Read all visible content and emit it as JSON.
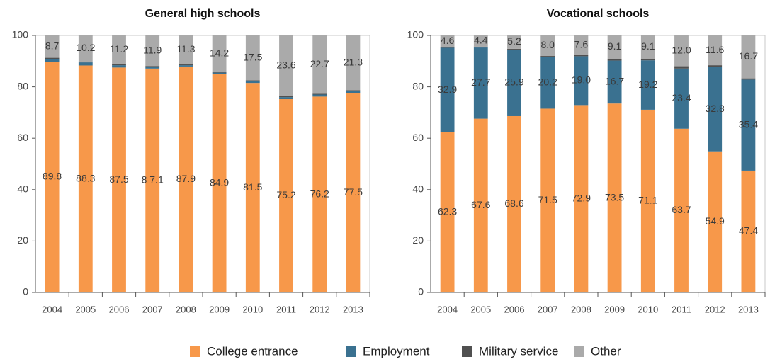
{
  "chart_data": [
    {
      "type": "stacked-bar",
      "title": "General high schools",
      "categories": [
        "2004",
        "2005",
        "2006",
        "2007",
        "2008",
        "2009",
        "2010",
        "2011",
        "2012",
        "2013"
      ],
      "ylim": [
        0,
        100
      ],
      "yticks": [
        0,
        20,
        40,
        60,
        80,
        100
      ],
      "series": [
        {
          "name": "College entrance",
          "color": "#f7984a",
          "values": [
            89.8,
            88.3,
            87.5,
            87.1,
            87.9,
            84.9,
            81.5,
            75.2,
            76.2,
            77.5
          ],
          "value_labels": [
            "89.8",
            "88.3",
            "87.5",
            "8 7.1",
            "87.9",
            "84.9",
            "81.5",
            "75.2",
            "76.2",
            "77.5"
          ]
        },
        {
          "name": "Employment",
          "color": "#3a7190",
          "values": [
            1.0,
            1.2,
            0.9,
            0.6,
            0.5,
            0.6,
            0.6,
            0.8,
            0.8,
            0.9
          ]
        },
        {
          "name": "Military service",
          "color": "#505050",
          "values": [
            0.5,
            0.3,
            0.4,
            0.4,
            0.3,
            0.3,
            0.4,
            0.4,
            0.3,
            0.3
          ]
        },
        {
          "name": "Other",
          "color": "#aaaaaa",
          "values": [
            8.7,
            10.2,
            11.2,
            11.9,
            11.3,
            14.2,
            17.5,
            23.6,
            22.7,
            21.3
          ],
          "value_labels": [
            "8.7",
            "10.2",
            "11.2",
            "11.9",
            "11.3",
            "14.2",
            "17.5",
            "23.6",
            "22.7",
            "21.3"
          ]
        }
      ]
    },
    {
      "type": "stacked-bar",
      "title": "Vocational schools",
      "categories": [
        "2004",
        "2005",
        "2006",
        "2007",
        "2008",
        "2009",
        "2010",
        "2011",
        "2012",
        "2013"
      ],
      "ylim": [
        0,
        100
      ],
      "yticks": [
        0,
        20,
        40,
        60,
        80,
        100
      ],
      "series": [
        {
          "color": "#f7984a",
          "values": [
            62.3,
            67.6,
            68.6,
            71.5,
            72.9,
            73.5,
            71.1,
            63.7,
            54.9,
            47.4
          ],
          "value_labels": [
            "62.3",
            "67.6",
            "68.6",
            "71.5",
            "72.9",
            "73.5",
            "71.1",
            "63.7",
            "54.9",
            "47.4"
          ]
        },
        {
          "color": "#3a7190",
          "values": [
            32.9,
            27.7,
            25.9,
            20.2,
            19,
            16.7,
            19.2,
            23.4,
            32.8,
            35.4
          ],
          "value_labels": [
            "32.9",
            "27.7",
            "25.9",
            "20.2",
            "19.0",
            "16.7",
            "19.2",
            "23.4",
            "32.8",
            "35.4"
          ]
        },
        {
          "color": "#505050",
          "values": [
            0.2,
            0.3,
            0.3,
            0.3,
            0.5,
            0.7,
            0.6,
            0.9,
            0.7,
            0.5
          ]
        },
        {
          "color": "#aaaaaa",
          "values": [
            4.6,
            4.4,
            5.2,
            8,
            7.6,
            9.1,
            9.1,
            12,
            11.6,
            16.7
          ],
          "value_labels": [
            "4.6",
            "4.4",
            "5.2",
            "8.0",
            "7.6",
            "9.1",
            "9.1",
            "12.0",
            "11.6",
            "16.7"
          ]
        }
      ]
    }
  ]
}
